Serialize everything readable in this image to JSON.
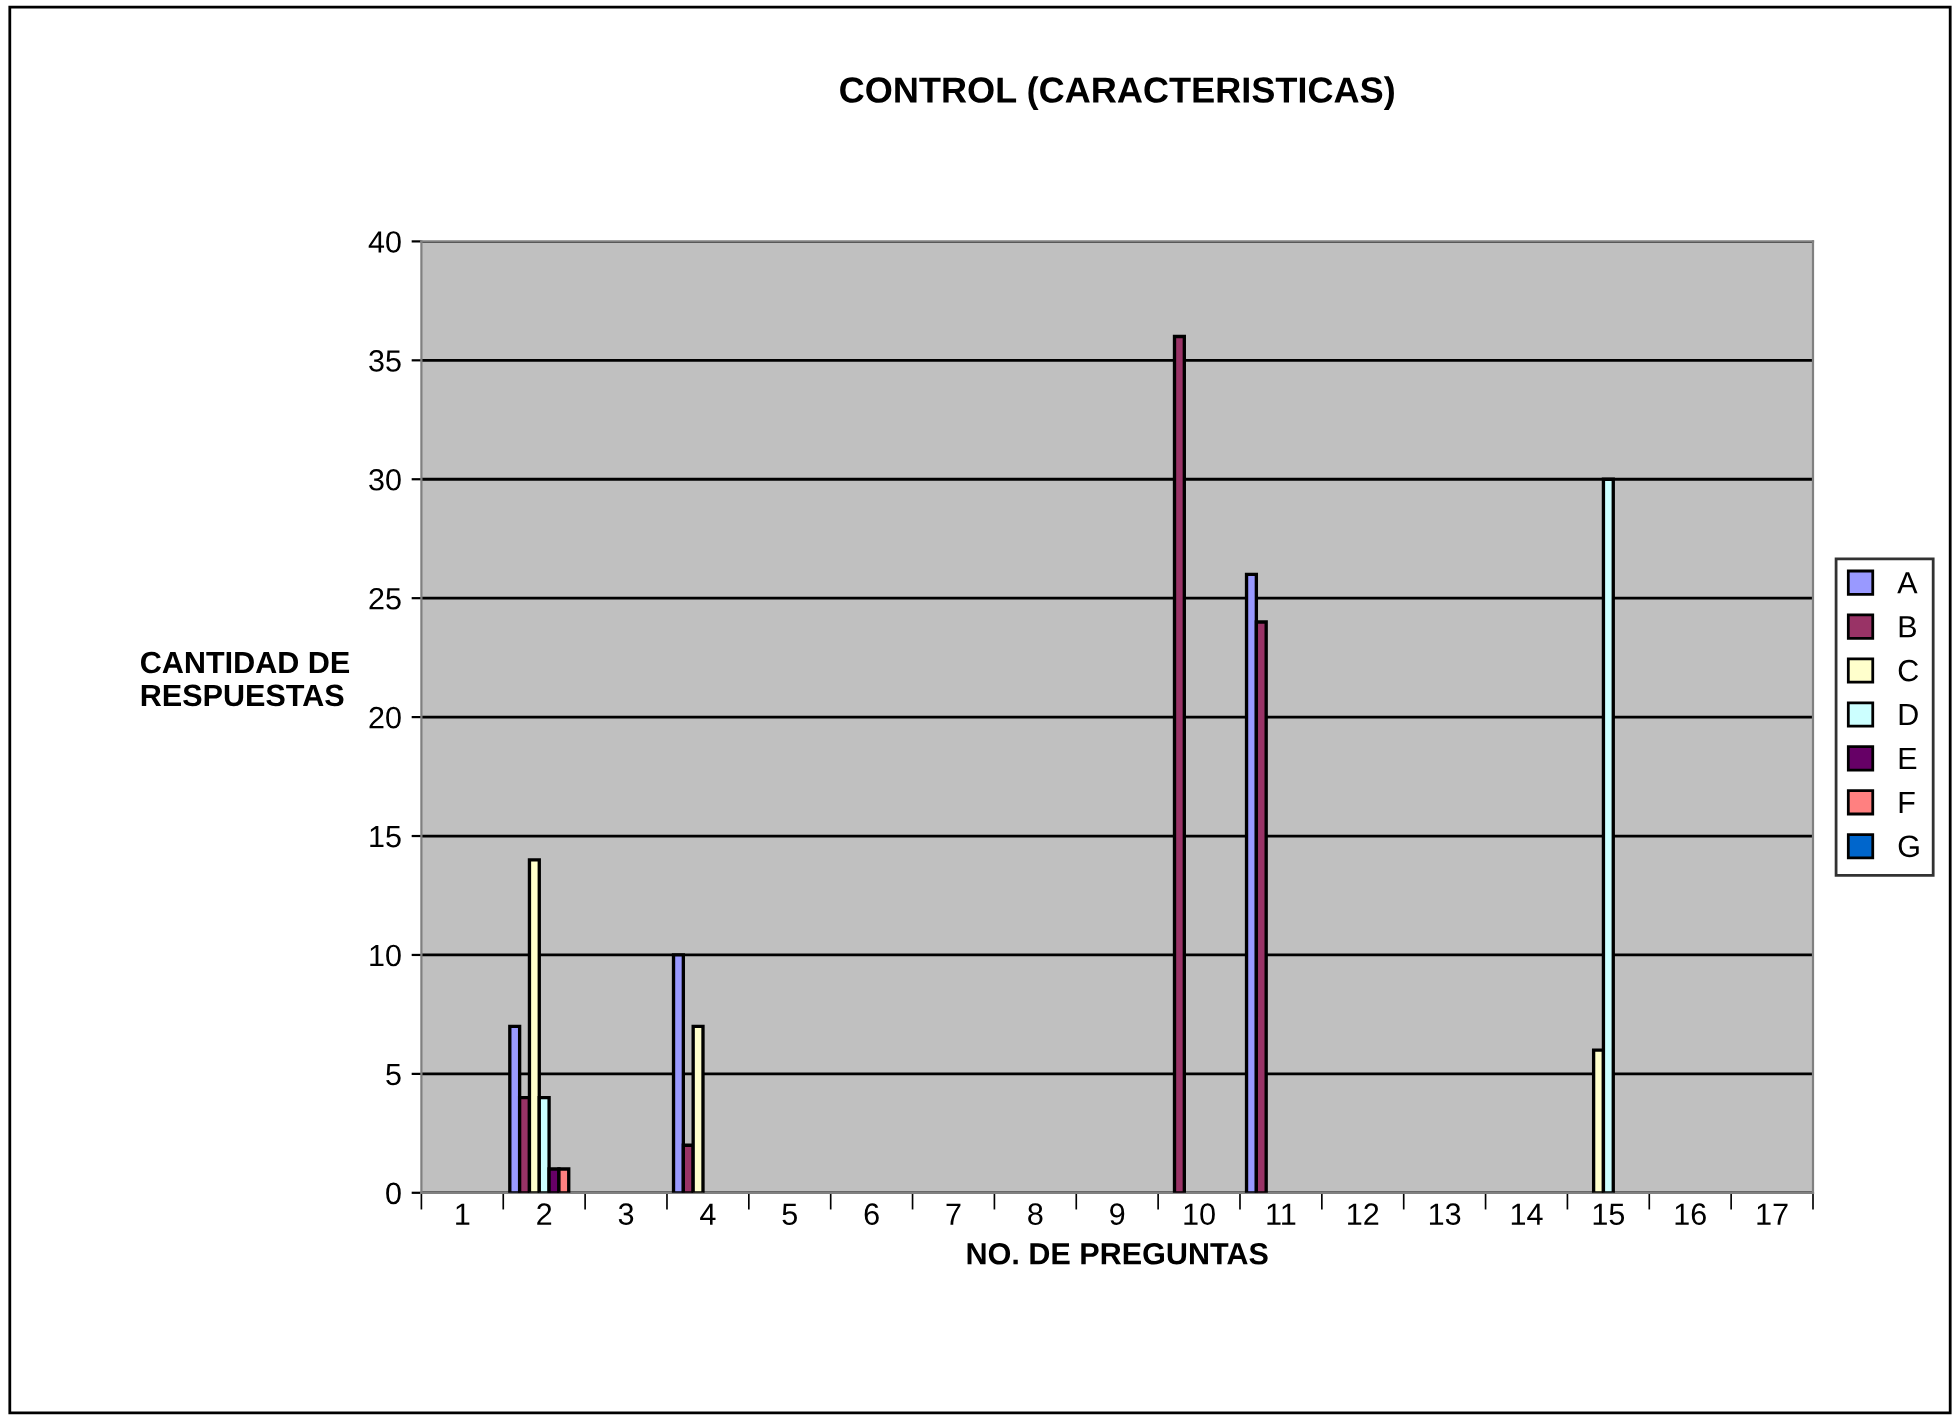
{
  "chart_data": {
    "type": "bar",
    "title": "CONTROL (CARACTERISTICAS)",
    "xlabel": "NO. DE PREGUNTAS",
    "ylabel": "CANTIDAD DE\nRESPUESTAS",
    "categories": [
      "1",
      "2",
      "3",
      "4",
      "5",
      "6",
      "7",
      "8",
      "9",
      "10",
      "11",
      "12",
      "13",
      "14",
      "15",
      "16",
      "17"
    ],
    "series": [
      {
        "name": "A",
        "color": "#9999ff",
        "values": [
          null,
          7,
          null,
          10,
          null,
          null,
          null,
          null,
          null,
          null,
          26,
          null,
          null,
          null,
          null,
          null,
          null
        ]
      },
      {
        "name": "B",
        "color": "#993366",
        "values": [
          null,
          4,
          null,
          2,
          null,
          null,
          null,
          null,
          null,
          36,
          24,
          null,
          null,
          null,
          null,
          null,
          null
        ]
      },
      {
        "name": "C",
        "color": "#ffffcc",
        "values": [
          null,
          14,
          null,
          7,
          null,
          null,
          null,
          null,
          null,
          null,
          null,
          null,
          null,
          null,
          6,
          null,
          null
        ]
      },
      {
        "name": "D",
        "color": "#ccffff",
        "values": [
          null,
          4,
          null,
          null,
          null,
          null,
          null,
          null,
          null,
          null,
          null,
          null,
          null,
          null,
          30,
          null,
          null
        ]
      },
      {
        "name": "E",
        "color": "#660066",
        "values": [
          null,
          1,
          null,
          null,
          null,
          null,
          null,
          null,
          null,
          null,
          null,
          null,
          null,
          null,
          null,
          null,
          null
        ]
      },
      {
        "name": "F",
        "color": "#ff8080",
        "values": [
          null,
          1,
          null,
          null,
          null,
          null,
          null,
          null,
          null,
          null,
          null,
          null,
          null,
          null,
          null,
          null,
          null
        ]
      },
      {
        "name": "G",
        "color": "#0066cc",
        "values": [
          null,
          null,
          null,
          null,
          null,
          null,
          null,
          null,
          null,
          null,
          null,
          null,
          null,
          null,
          null,
          null,
          null
        ]
      }
    ],
    "ylim": [
      0,
      40
    ],
    "yticks": [
      0,
      5,
      10,
      15,
      20,
      25,
      30,
      35,
      40
    ],
    "grid": "y",
    "legend": "right"
  }
}
